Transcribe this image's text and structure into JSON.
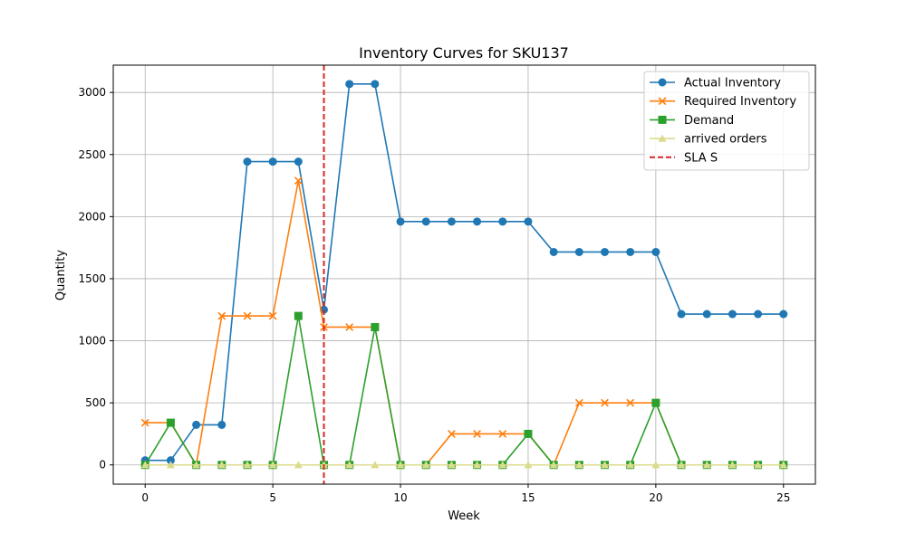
{
  "chart_data": {
    "type": "line",
    "title": "Inventory Curves for SKU137",
    "xlabel": "Week",
    "ylabel": "Quantity",
    "xlim": [
      -1.25,
      26.25
    ],
    "ylim": [
      -155,
      3220
    ],
    "x_ticks": [
      0,
      5,
      10,
      15,
      20,
      25
    ],
    "y_ticks": [
      0,
      500,
      1000,
      1500,
      2000,
      2500,
      3000
    ],
    "grid": true,
    "legend_position": "top-right",
    "x": [
      0,
      1,
      2,
      3,
      4,
      5,
      6,
      7,
      8,
      9,
      10,
      11,
      12,
      13,
      14,
      15,
      16,
      17,
      18,
      19,
      20,
      21,
      22,
      23,
      24,
      25
    ],
    "series": [
      {
        "name": "Actual Inventory",
        "color": "#1f77b4",
        "marker": "circle",
        "values": [
          37,
          37,
          323,
          323,
          2443,
          2443,
          2443,
          1250,
          3068,
          3068,
          1960,
          1960,
          1960,
          1960,
          1960,
          1960,
          1715,
          1715,
          1715,
          1715,
          1715,
          1215,
          1215,
          1215,
          1215,
          1215
        ]
      },
      {
        "name": "Required Inventory",
        "color": "#ff7f0e",
        "marker": "x",
        "values": [
          340,
          340,
          0,
          1200,
          1200,
          1200,
          2290,
          1110,
          1110,
          1110,
          0,
          0,
          250,
          250,
          250,
          250,
          0,
          500,
          500,
          500,
          500,
          0,
          0,
          0,
          0,
          0
        ]
      },
      {
        "name": "Demand",
        "color": "#2ca02c",
        "marker": "square",
        "values": [
          0,
          340,
          0,
          0,
          0,
          0,
          1200,
          0,
          0,
          1110,
          0,
          0,
          0,
          0,
          0,
          250,
          0,
          0,
          0,
          0,
          500,
          0,
          0,
          0,
          0,
          0
        ]
      },
      {
        "name": "arrived orders",
        "color": "#dbdb8d",
        "marker": "triangle",
        "values": [
          0,
          0,
          0,
          0,
          0,
          0,
          0,
          0,
          0,
          0,
          0,
          0,
          0,
          0,
          0,
          0,
          0,
          0,
          0,
          0,
          0,
          0,
          0,
          0,
          0,
          0
        ]
      }
    ],
    "vline": {
      "name": "SLA S",
      "x": 7,
      "color": "#d62728",
      "style": "dashed"
    }
  }
}
